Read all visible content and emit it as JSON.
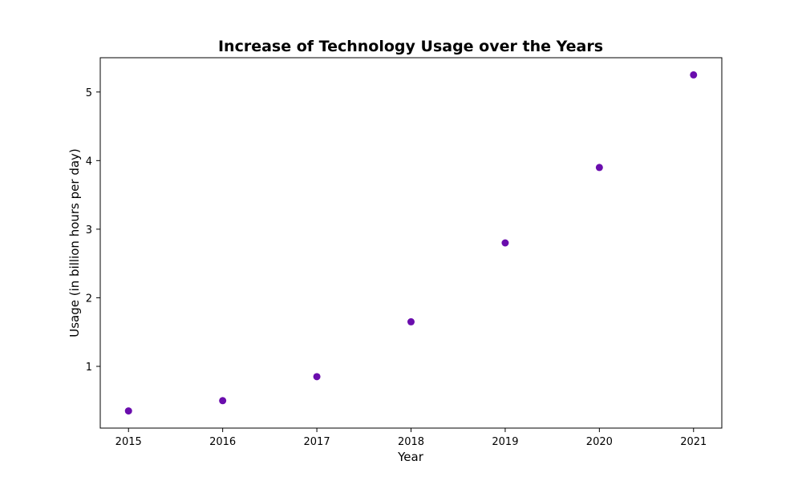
{
  "chart_data": {
    "type": "scatter",
    "title": "Increase of Technology Usage over the Years",
    "xlabel": "Year",
    "ylabel": "Usage (in billion hours per day)",
    "x": [
      2015,
      2016,
      2017,
      2018,
      2019,
      2020,
      2021
    ],
    "y": [
      0.35,
      0.5,
      0.85,
      1.65,
      2.8,
      3.9,
      5.25
    ],
    "x_ticks": [
      2015,
      2016,
      2017,
      2018,
      2019,
      2020,
      2021
    ],
    "y_ticks": [
      1,
      2,
      3,
      4,
      5
    ],
    "xlim": [
      2014.7,
      2021.3
    ],
    "ylim": [
      0.1,
      5.5
    ],
    "marker_color": "#6a0dad",
    "grid": false,
    "legend": "none"
  }
}
